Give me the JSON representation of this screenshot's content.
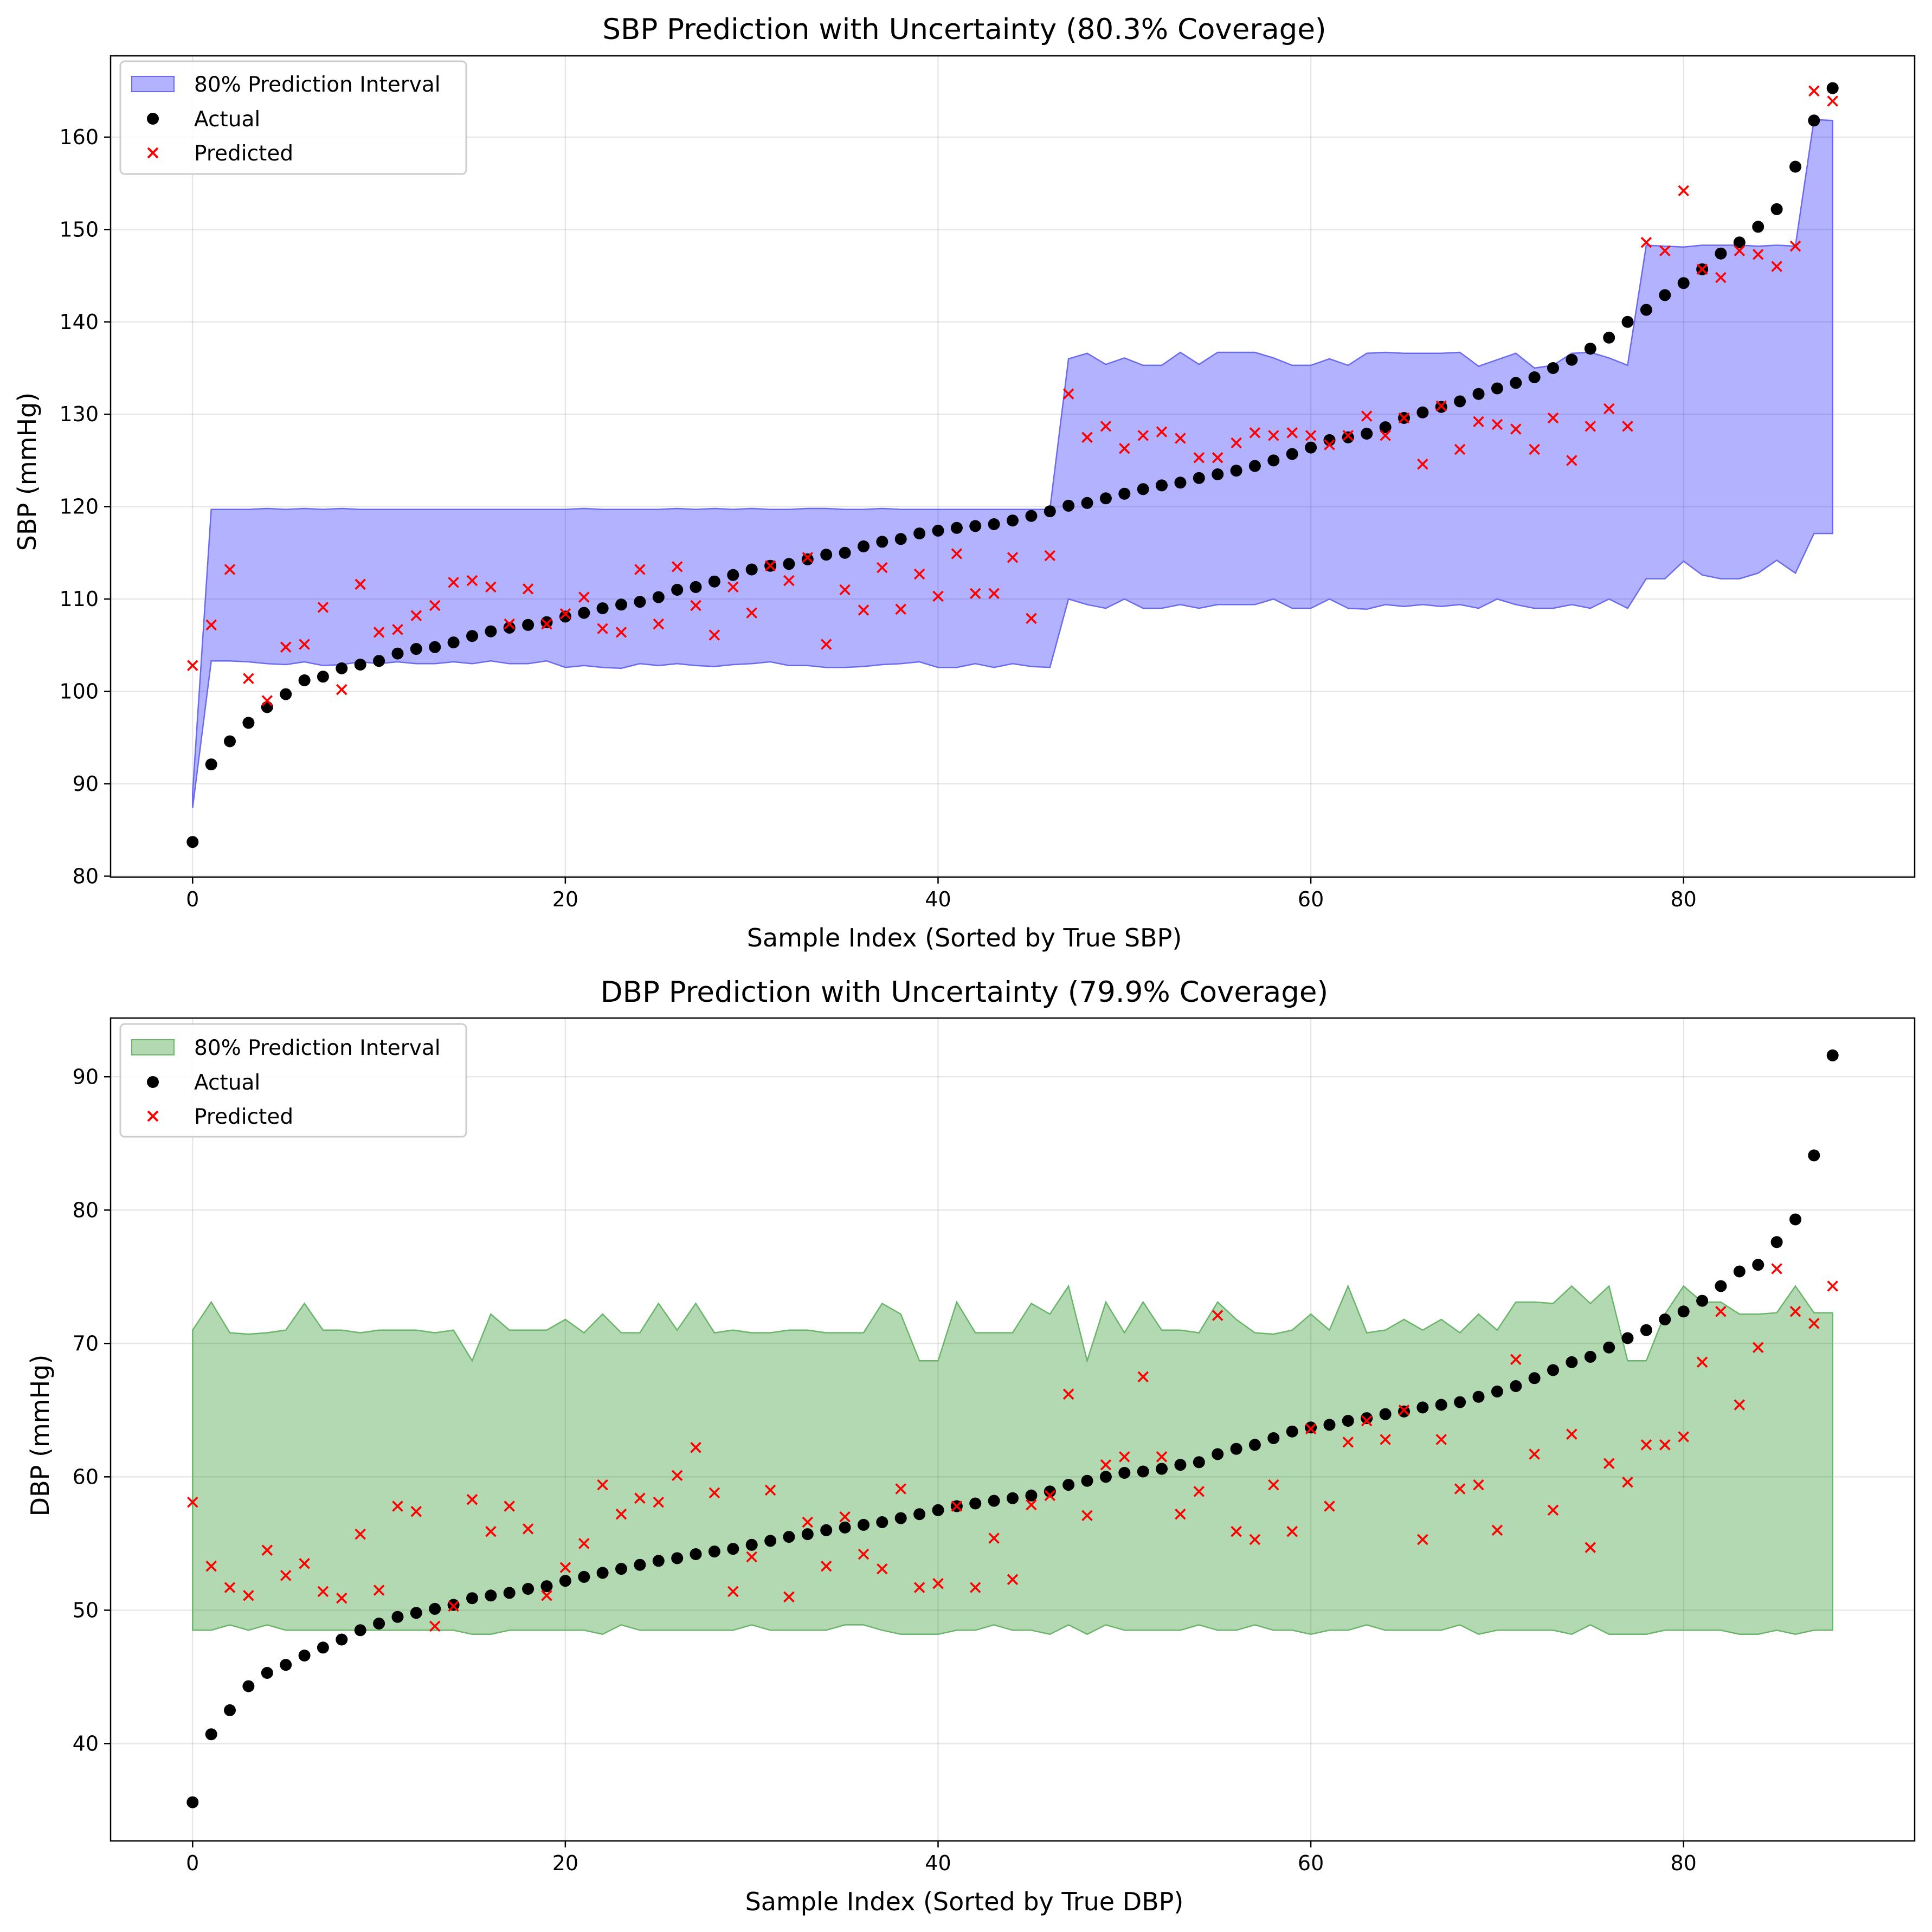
{
  "chart_data": [
    {
      "type": "scatter",
      "title": "SBP Prediction with Uncertainty (80.3% Coverage)",
      "xlabel": "Sample Index (Sorted by True SBP)",
      "ylabel": "SBP (mmHg)",
      "xlim": [
        -4.4,
        92.4
      ],
      "ylim": [
        79.9,
        168.8
      ],
      "xticks": [
        0,
        20,
        40,
        60,
        80
      ],
      "yticks": [
        80,
        90,
        100,
        110,
        120,
        130,
        140,
        150,
        160
      ],
      "grid": true,
      "legend_position": "upper left",
      "legend": [
        "80% Prediction Interval",
        "Actual",
        "Predicted"
      ],
      "band_color": "#0000ff",
      "band_edge_color": "#6a6af0",
      "actual_color": "#000000",
      "predicted_color": "#ff0000",
      "actual": [
        83.7,
        92.1,
        94.6,
        96.6,
        98.3,
        99.7,
        101.2,
        101.6,
        102.5,
        102.9,
        103.3,
        104.1,
        104.6,
        104.8,
        105.3,
        106.0,
        106.5,
        106.9,
        107.2,
        107.5,
        108.1,
        108.5,
        109.0,
        109.4,
        109.7,
        110.2,
        111.0,
        111.3,
        111.9,
        112.6,
        113.2,
        113.6,
        113.8,
        114.3,
        114.8,
        115.0,
        115.7,
        116.2,
        116.5,
        117.1,
        117.4,
        117.7,
        117.9,
        118.1,
        118.5,
        119.0,
        119.5,
        120.1,
        120.4,
        120.9,
        121.4,
        121.9,
        122.3,
        122.6,
        123.1,
        123.5,
        123.9,
        124.4,
        125.0,
        125.7,
        126.4,
        127.2,
        127.5,
        127.9,
        128.6,
        129.6,
        130.2,
        130.8,
        131.4,
        132.2,
        132.8,
        133.4,
        134.0,
        135.0,
        135.9,
        137.1,
        138.3,
        140.0,
        141.3,
        142.9,
        144.2,
        145.7,
        147.4,
        148.6,
        150.3,
        152.2,
        156.8,
        161.8,
        165.3
      ],
      "predicted": [
        102.8,
        107.2,
        113.2,
        101.4,
        99.0,
        104.8,
        105.1,
        109.1,
        100.2,
        111.6,
        106.4,
        106.7,
        108.2,
        109.3,
        111.8,
        112.0,
        111.3,
        107.3,
        111.1,
        107.3,
        108.4,
        110.2,
        106.8,
        106.4,
        113.2,
        107.3,
        113.5,
        109.3,
        106.1,
        111.3,
        108.5,
        113.6,
        112.0,
        114.5,
        105.1,
        111.0,
        108.8,
        113.4,
        108.9,
        112.7,
        110.3,
        114.9,
        110.6,
        110.6,
        114.5,
        107.9,
        114.7,
        132.2,
        127.5,
        128.7,
        126.3,
        127.7,
        128.1,
        127.4,
        125.3,
        125.3,
        126.9,
        128.0,
        127.7,
        128.0,
        127.7,
        126.7,
        127.7,
        129.8,
        127.7,
        129.6,
        124.6,
        130.9,
        126.2,
        129.2,
        128.9,
        128.4,
        126.2,
        129.6,
        125.0,
        128.7,
        130.6,
        128.7,
        148.6,
        147.7,
        154.2,
        145.7,
        144.8,
        147.7,
        147.3,
        146.0,
        148.2,
        165.0,
        163.9
      ],
      "interval_low": [
        87.4,
        103.3,
        103.3,
        103.2,
        103.0,
        102.9,
        103.2,
        102.8,
        102.9,
        103.2,
        103.0,
        103.2,
        103.0,
        103.0,
        103.2,
        103.0,
        103.3,
        103.0,
        103.0,
        103.3,
        102.6,
        102.8,
        102.6,
        102.5,
        103.0,
        102.8,
        103.0,
        102.8,
        102.7,
        102.9,
        103.0,
        103.2,
        102.8,
        102.8,
        102.6,
        102.6,
        102.7,
        102.9,
        103.0,
        103.2,
        102.6,
        102.6,
        103.0,
        102.6,
        103.0,
        102.7,
        102.6,
        110.0,
        109.4,
        109.0,
        110.0,
        109.0,
        109.0,
        109.4,
        109.0,
        109.4,
        109.4,
        109.4,
        110.0,
        109.0,
        109.0,
        110.0,
        109.0,
        108.9,
        109.4,
        109.2,
        109.4,
        109.2,
        109.4,
        109.0,
        110.0,
        109.4,
        109.0,
        109.0,
        109.4,
        109.0,
        110.0,
        109.0,
        112.2,
        112.2,
        114.1,
        112.6,
        112.2,
        112.2,
        112.8,
        114.2,
        112.8,
        117.1,
        117.1
      ],
      "interval_high": [
        89.0,
        119.7,
        119.7,
        119.7,
        119.8,
        119.7,
        119.8,
        119.7,
        119.8,
        119.7,
        119.7,
        119.7,
        119.7,
        119.7,
        119.7,
        119.7,
        119.7,
        119.7,
        119.7,
        119.7,
        119.7,
        119.8,
        119.7,
        119.7,
        119.7,
        119.7,
        119.8,
        119.7,
        119.8,
        119.7,
        119.8,
        119.7,
        119.7,
        119.8,
        119.8,
        119.7,
        119.7,
        119.8,
        119.7,
        119.7,
        119.7,
        119.7,
        119.7,
        119.7,
        119.7,
        119.7,
        119.7,
        136.0,
        136.6,
        135.4,
        136.1,
        135.3,
        135.3,
        136.7,
        135.4,
        136.7,
        136.7,
        136.7,
        136.1,
        135.3,
        135.3,
        136.0,
        135.3,
        136.6,
        136.7,
        136.6,
        136.6,
        136.6,
        136.7,
        135.2,
        135.9,
        136.6,
        135.0,
        135.3,
        136.6,
        136.7,
        136.1,
        135.3,
        148.3,
        148.2,
        148.1,
        148.3,
        148.3,
        148.3,
        148.2,
        148.3,
        148.2,
        161.9,
        161.8
      ]
    },
    {
      "type": "scatter",
      "title": "DBP Prediction with Uncertainty (79.9% Coverage)",
      "xlabel": "Sample Index (Sorted by True DBP)",
      "ylabel": "DBP (mmHg)",
      "xlim": [
        -4.4,
        92.4
      ],
      "ylim": [
        32.7,
        94.4
      ],
      "xticks": [
        0,
        20,
        40,
        60,
        80
      ],
      "yticks": [
        40,
        50,
        60,
        70,
        80,
        90
      ],
      "grid": true,
      "legend_position": "upper left",
      "legend": [
        "80% Prediction Interval",
        "Actual",
        "Predicted"
      ],
      "band_color": "#008000",
      "band_edge_color": "#6ab56a",
      "actual_color": "#000000",
      "predicted_color": "#ff0000",
      "actual": [
        35.6,
        40.7,
        42.5,
        44.3,
        45.3,
        45.9,
        46.6,
        47.2,
        47.8,
        48.5,
        49.0,
        49.5,
        49.8,
        50.1,
        50.4,
        50.9,
        51.1,
        51.3,
        51.6,
        51.8,
        52.2,
        52.5,
        52.8,
        53.1,
        53.4,
        53.7,
        53.9,
        54.2,
        54.4,
        54.6,
        54.9,
        55.2,
        55.5,
        55.7,
        56.0,
        56.2,
        56.4,
        56.6,
        56.9,
        57.2,
        57.5,
        57.8,
        58.0,
        58.2,
        58.4,
        58.6,
        58.9,
        59.4,
        59.7,
        60.0,
        60.3,
        60.4,
        60.6,
        60.9,
        61.1,
        61.7,
        62.1,
        62.4,
        62.9,
        63.4,
        63.7,
        63.9,
        64.2,
        64.4,
        64.7,
        64.9,
        65.2,
        65.4,
        65.6,
        66.0,
        66.4,
        66.8,
        67.4,
        68.0,
        68.6,
        69.0,
        69.7,
        70.4,
        71.0,
        71.8,
        72.4,
        73.2,
        74.3,
        75.4,
        75.9,
        77.6,
        79.3,
        84.1,
        91.6
      ],
      "predicted": [
        58.1,
        53.3,
        51.7,
        51.1,
        54.5,
        52.6,
        53.5,
        51.4,
        50.9,
        55.7,
        51.5,
        57.8,
        57.4,
        48.8,
        50.3,
        58.3,
        55.9,
        57.8,
        56.1,
        51.1,
        53.2,
        55.0,
        59.4,
        57.2,
        58.4,
        58.1,
        60.1,
        62.2,
        58.8,
        51.4,
        54.0,
        59.0,
        51.0,
        56.6,
        53.3,
        57.0,
        54.2,
        53.1,
        59.1,
        51.7,
        52.0,
        57.8,
        51.7,
        55.4,
        52.3,
        57.9,
        58.6,
        66.2,
        57.1,
        60.9,
        61.5,
        67.5,
        61.5,
        57.2,
        58.9,
        72.1,
        55.9,
        55.3,
        59.4,
        55.9,
        63.6,
        57.8,
        62.6,
        64.2,
        62.8,
        65.0,
        55.3,
        62.8,
        59.1,
        59.4,
        56.0,
        68.8,
        61.7,
        57.5,
        63.2,
        54.7,
        61.0,
        59.6,
        62.4,
        62.4,
        63.0,
        68.6,
        72.4,
        65.4,
        69.7,
        75.6,
        72.4,
        71.5,
        74.3
      ],
      "interval_low": [
        48.5,
        48.5,
        48.9,
        48.5,
        48.9,
        48.5,
        48.5,
        48.5,
        48.5,
        48.5,
        48.5,
        48.5,
        48.5,
        48.5,
        48.5,
        48.2,
        48.2,
        48.5,
        48.5,
        48.5,
        48.5,
        48.5,
        48.2,
        48.9,
        48.5,
        48.5,
        48.5,
        48.5,
        48.5,
        48.5,
        48.9,
        48.5,
        48.5,
        48.5,
        48.5,
        48.9,
        48.9,
        48.5,
        48.2,
        48.2,
        48.2,
        48.5,
        48.5,
        48.9,
        48.5,
        48.5,
        48.2,
        48.9,
        48.2,
        48.9,
        48.5,
        48.5,
        48.5,
        48.5,
        48.9,
        48.5,
        48.5,
        48.9,
        48.5,
        48.5,
        48.2,
        48.5,
        48.5,
        48.9,
        48.5,
        48.5,
        48.5,
        48.5,
        48.9,
        48.2,
        48.5,
        48.5,
        48.5,
        48.5,
        48.2,
        48.9,
        48.2,
        48.2,
        48.2,
        48.5,
        48.5,
        48.5,
        48.5,
        48.2,
        48.2,
        48.5,
        48.2,
        48.5,
        48.5
      ],
      "interval_high": [
        71.0,
        73.1,
        70.8,
        70.7,
        70.8,
        71.0,
        73.0,
        71.0,
        71.0,
        70.8,
        71.0,
        71.0,
        71.0,
        70.8,
        71.0,
        68.7,
        72.2,
        71.0,
        71.0,
        71.0,
        71.8,
        70.8,
        72.2,
        70.8,
        70.8,
        73.0,
        71.0,
        73.0,
        70.8,
        71.0,
        70.8,
        70.8,
        71.0,
        71.0,
        70.8,
        70.8,
        70.8,
        73.0,
        72.2,
        68.7,
        68.7,
        73.1,
        70.8,
        70.8,
        70.8,
        73.0,
        72.2,
        74.3,
        68.7,
        73.1,
        70.8,
        73.1,
        71.0,
        71.0,
        70.8,
        73.1,
        71.8,
        70.8,
        70.7,
        71.0,
        72.2,
        71.0,
        74.3,
        70.8,
        71.0,
        71.8,
        71.0,
        71.8,
        70.8,
        72.2,
        71.0,
        73.1,
        73.1,
        73.0,
        74.3,
        73.0,
        74.3,
        68.7,
        68.7,
        72.2,
        74.3,
        73.1,
        73.1,
        72.2,
        72.2,
        72.3,
        74.3,
        72.3,
        72.3
      ]
    }
  ]
}
